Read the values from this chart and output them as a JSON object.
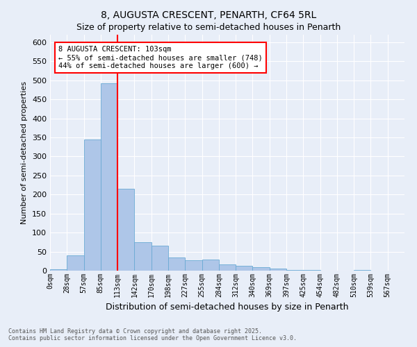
{
  "title": "8, AUGUSTA CRESCENT, PENARTH, CF64 5RL",
  "subtitle": "Size of property relative to semi-detached houses in Penarth",
  "xlabel": "Distribution of semi-detached houses by size in Penarth",
  "ylabel": "Number of semi-detached properties",
  "bin_labels": [
    "0sqm",
    "28sqm",
    "57sqm",
    "85sqm",
    "113sqm",
    "142sqm",
    "170sqm",
    "198sqm",
    "227sqm",
    "255sqm",
    "284sqm",
    "312sqm",
    "340sqm",
    "369sqm",
    "397sqm",
    "425sqm",
    "454sqm",
    "482sqm",
    "510sqm",
    "539sqm",
    "567sqm"
  ],
  "bar_values": [
    4,
    40,
    345,
    492,
    215,
    75,
    65,
    35,
    28,
    30,
    16,
    12,
    10,
    5,
    1,
    1,
    0,
    0,
    1,
    0,
    0
  ],
  "bar_color": "#aec6e8",
  "bar_edge_color": "#6aaad4",
  "annotation_title": "8 AUGUSTA CRESCENT: 103sqm",
  "annotation_line1": "← 55% of semi-detached houses are smaller (748)",
  "annotation_line2": "44% of semi-detached houses are larger (600) →",
  "red_line_bin": 4,
  "ylim": [
    0,
    620
  ],
  "yticks": [
    0,
    50,
    100,
    150,
    200,
    250,
    300,
    350,
    400,
    450,
    500,
    550,
    600
  ],
  "footer_line1": "Contains HM Land Registry data © Crown copyright and database right 2025.",
  "footer_line2": "Contains public sector information licensed under the Open Government Licence v3.0.",
  "bg_color": "#e8eef8",
  "plot_bg_color": "#e8eef8",
  "title_fontsize": 10,
  "subtitle_fontsize": 9,
  "ylabel_fontsize": 8,
  "xlabel_fontsize": 9
}
